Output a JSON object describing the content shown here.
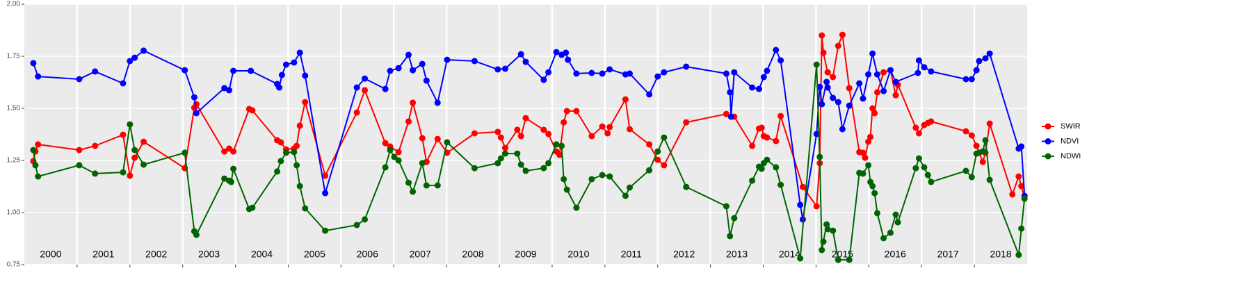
{
  "chart_data": {
    "type": "line",
    "xlim": [
      2000,
      2019
    ],
    "ylim": [
      0.75,
      2.0
    ],
    "yticks": [
      0.75,
      {
        "value": 1.0,
        "label": "1.00"
      },
      1.25,
      {
        "value": 1.5,
        "label": "1.50"
      },
      1.75,
      {
        "value": 2.0,
        "label": "2.00"
      }
    ],
    "x_breaks": [
      2001,
      2002,
      2003,
      2004,
      2005,
      2006,
      2007,
      2008,
      2009,
      2010,
      2011,
      2012,
      2013,
      2014,
      2015,
      2016,
      2017,
      2018
    ],
    "year_labels": [
      {
        "value": 2000.5,
        "label": "2000"
      },
      {
        "value": 2001.5,
        "label": "2001"
      },
      {
        "value": 2002.5,
        "label": "2002"
      },
      {
        "value": 2003.5,
        "label": "2003"
      },
      {
        "value": 2004.5,
        "label": "2004"
      },
      {
        "value": 2005.5,
        "label": "2005"
      },
      {
        "value": 2006.5,
        "label": "2006"
      },
      {
        "value": 2007.5,
        "label": "2007"
      },
      {
        "value": 2008.5,
        "label": "2008"
      },
      {
        "value": 2009.5,
        "label": "2009"
      },
      {
        "value": 2010.5,
        "label": "2010"
      },
      {
        "value": 2011.5,
        "label": "2011"
      },
      {
        "value": 2012.5,
        "label": "2012"
      },
      {
        "value": 2013.5,
        "label": "2013"
      },
      {
        "value": 2014.5,
        "label": "2014"
      },
      {
        "value": 2015.5,
        "label": "2015"
      },
      {
        "value": 2016.5,
        "label": "2016"
      },
      {
        "value": 2017.5,
        "label": "2017"
      },
      {
        "value": 2018.5,
        "label": "2018"
      }
    ],
    "grid": true,
    "legend": "right",
    "series": [
      {
        "name": "SWIR",
        "color": "#ff0000",
        "x": [
          2000.17,
          2000.21,
          2000.26,
          2001.04,
          2001.34,
          2001.87,
          2002.0,
          2002.09,
          2002.26,
          2003.04,
          2003.22,
          2003.26,
          2003.79,
          2003.88,
          2003.96,
          2004.26,
          2004.32,
          2004.79,
          2004.86,
          2004.96,
          2005.11,
          2005.16,
          2005.22,
          2005.32,
          2005.7,
          2006.3,
          2006.45,
          2006.84,
          2006.93,
          2007.09,
          2007.28,
          2007.36,
          2007.54,
          2007.62,
          2007.83,
          2008.01,
          2008.53,
          2008.97,
          2009.03,
          2009.11,
          2009.34,
          2009.41,
          2009.5,
          2009.84,
          2009.93,
          2010.08,
          2010.14,
          2010.22,
          2010.28,
          2010.46,
          2010.75,
          2010.95,
          2011.05,
          2011.09,
          2011.39,
          2011.47,
          2011.84,
          2012.0,
          2012.12,
          2012.54,
          2013.3,
          2013.39,
          2013.45,
          2013.79,
          2013.92,
          2013.97,
          2014.01,
          2014.07,
          2014.24,
          2014.33,
          2014.75,
          2015.01,
          2015.07,
          2015.11,
          2015.14,
          2015.22,
          2015.32,
          2015.42,
          2015.5,
          2015.63,
          2015.82,
          2015.89,
          2015.93,
          2015.99,
          2016.03,
          2016.07,
          2016.11,
          2016.16,
          2016.28,
          2016.41,
          2016.51,
          2016.55,
          2016.89,
          2016.95,
          2017.05,
          2017.12,
          2017.18,
          2017.84,
          2017.95,
          2018.04,
          2018.16,
          2018.21,
          2018.29,
          2018.72,
          2018.84,
          2018.89,
          2018.95
        ],
        "values": [
          1.247,
          1.293,
          1.327,
          1.3,
          1.32,
          1.373,
          1.177,
          1.263,
          1.34,
          1.213,
          1.503,
          1.52,
          1.293,
          1.307,
          1.293,
          1.497,
          1.49,
          1.347,
          1.337,
          1.303,
          1.307,
          1.32,
          1.417,
          1.53,
          1.177,
          1.48,
          1.587,
          1.333,
          1.317,
          1.29,
          1.437,
          1.527,
          1.357,
          1.243,
          1.353,
          1.287,
          1.38,
          1.387,
          1.36,
          1.31,
          1.397,
          1.367,
          1.453,
          1.397,
          1.377,
          1.293,
          1.277,
          1.433,
          1.487,
          1.487,
          1.367,
          1.413,
          1.38,
          1.41,
          1.543,
          1.4,
          1.327,
          1.253,
          1.227,
          1.433,
          1.473,
          1.46,
          1.46,
          1.32,
          1.403,
          1.407,
          1.367,
          1.36,
          1.343,
          1.463,
          1.123,
          1.03,
          1.237,
          1.85,
          1.767,
          1.673,
          1.65,
          1.8,
          1.853,
          1.597,
          1.29,
          1.287,
          1.263,
          1.34,
          1.363,
          1.5,
          1.477,
          1.577,
          1.673,
          1.683,
          1.563,
          1.613,
          1.407,
          1.38,
          1.42,
          1.43,
          1.437,
          1.39,
          1.37,
          1.32,
          1.243,
          1.287,
          1.427,
          1.087,
          1.173,
          1.127,
          1.067
        ]
      },
      {
        "name": "NDVI",
        "color": "#0000ff",
        "x": [
          2000.17,
          2000.26,
          2001.04,
          2001.34,
          2001.87,
          2002.0,
          2002.09,
          2002.26,
          2003.04,
          2003.22,
          2003.26,
          2003.79,
          2003.88,
          2003.96,
          2004.29,
          2004.79,
          2004.83,
          2004.88,
          2004.96,
          2005.11,
          2005.22,
          2005.32,
          2005.7,
          2006.3,
          2006.45,
          2006.84,
          2006.93,
          2007.09,
          2007.28,
          2007.36,
          2007.54,
          2007.62,
          2007.83,
          2008.01,
          2008.53,
          2008.97,
          2009.11,
          2009.41,
          2009.5,
          2009.84,
          2009.93,
          2010.08,
          2010.18,
          2010.26,
          2010.3,
          2010.46,
          2010.75,
          2010.95,
          2011.09,
          2011.39,
          2011.47,
          2011.84,
          2012.0,
          2012.12,
          2012.54,
          2013.3,
          2013.37,
          2013.39,
          2013.45,
          2013.79,
          2013.92,
          2014.01,
          2014.07,
          2014.24,
          2014.33,
          2014.7,
          2014.75,
          2015.01,
          2015.07,
          2015.11,
          2015.2,
          2015.22,
          2015.32,
          2015.42,
          2015.5,
          2015.63,
          2015.82,
          2015.89,
          2015.99,
          2016.07,
          2016.16,
          2016.28,
          2016.41,
          2016.51,
          2016.93,
          2016.95,
          2017.05,
          2017.18,
          2017.84,
          2017.95,
          2018.04,
          2018.09,
          2018.21,
          2018.29,
          2018.84,
          2018.89,
          2018.95
        ],
        "values": [
          1.717,
          1.653,
          1.64,
          1.677,
          1.62,
          1.727,
          1.743,
          1.777,
          1.683,
          1.553,
          1.477,
          1.597,
          1.587,
          1.68,
          1.68,
          1.617,
          1.6,
          1.66,
          1.71,
          1.72,
          1.767,
          1.657,
          1.093,
          1.6,
          1.643,
          1.593,
          1.68,
          1.693,
          1.757,
          1.683,
          1.713,
          1.633,
          1.527,
          1.733,
          1.727,
          1.687,
          1.69,
          1.76,
          1.723,
          1.637,
          1.673,
          1.77,
          1.757,
          1.767,
          1.733,
          1.667,
          1.67,
          1.667,
          1.687,
          1.663,
          1.667,
          1.567,
          1.653,
          1.673,
          1.7,
          1.667,
          1.577,
          1.46,
          1.673,
          1.6,
          1.593,
          1.65,
          1.68,
          1.78,
          1.73,
          1.037,
          0.967,
          1.377,
          1.603,
          1.52,
          1.627,
          1.6,
          1.55,
          1.53,
          1.4,
          1.513,
          1.62,
          1.547,
          1.663,
          1.763,
          1.663,
          1.583,
          1.683,
          1.627,
          1.67,
          1.73,
          1.697,
          1.677,
          1.64,
          1.64,
          1.683,
          1.727,
          1.74,
          1.763,
          1.307,
          1.317,
          1.08
        ]
      },
      {
        "name": "NDWI",
        "color": "#006400",
        "x": [
          2000.17,
          2000.21,
          2000.26,
          2001.04,
          2001.34,
          2001.87,
          2002.0,
          2002.09,
          2002.26,
          2003.04,
          2003.22,
          2003.26,
          2003.79,
          2003.88,
          2003.92,
          2003.96,
          2004.26,
          2004.32,
          2004.79,
          2004.86,
          2004.96,
          2005.11,
          2005.16,
          2005.22,
          2005.32,
          2005.7,
          2006.3,
          2006.45,
          2006.84,
          2006.93,
          2007.01,
          2007.09,
          2007.28,
          2007.36,
          2007.54,
          2007.62,
          2007.83,
          2008.01,
          2008.53,
          2008.97,
          2009.03,
          2009.11,
          2009.34,
          2009.41,
          2009.5,
          2009.84,
          2009.93,
          2010.08,
          2010.18,
          2010.22,
          2010.28,
          2010.46,
          2010.75,
          2010.95,
          2011.09,
          2011.39,
          2011.47,
          2011.84,
          2012.0,
          2012.12,
          2012.54,
          2013.3,
          2013.37,
          2013.45,
          2013.79,
          2013.92,
          2013.97,
          2014.01,
          2014.07,
          2014.24,
          2014.33,
          2014.7,
          2015.01,
          2015.07,
          2015.11,
          2015.14,
          2015.2,
          2015.22,
          2015.32,
          2015.42,
          2015.63,
          2015.82,
          2015.89,
          2015.99,
          2016.03,
          2016.07,
          2016.11,
          2016.16,
          2016.28,
          2016.41,
          2016.51,
          2016.55,
          2016.89,
          2016.95,
          2017.05,
          2017.12,
          2017.18,
          2017.84,
          2017.95,
          2018.04,
          2018.09,
          2018.16,
          2018.21,
          2018.29,
          2018.84,
          2018.89,
          2018.95
        ],
        "values": [
          1.3,
          1.227,
          1.173,
          1.227,
          1.187,
          1.193,
          1.423,
          1.3,
          1.23,
          1.287,
          0.91,
          0.893,
          1.163,
          1.153,
          1.147,
          1.21,
          1.017,
          1.023,
          1.197,
          1.247,
          1.287,
          1.29,
          1.227,
          1.127,
          1.02,
          0.913,
          0.94,
          0.967,
          1.217,
          1.3,
          1.267,
          1.25,
          1.143,
          1.1,
          1.237,
          1.13,
          1.13,
          1.337,
          1.213,
          1.237,
          1.26,
          1.283,
          1.283,
          1.23,
          1.2,
          1.213,
          1.237,
          1.327,
          1.32,
          1.16,
          1.11,
          1.023,
          1.16,
          1.18,
          1.173,
          1.08,
          1.12,
          1.203,
          1.293,
          1.36,
          1.123,
          1.03,
          0.887,
          0.973,
          1.153,
          1.22,
          1.21,
          1.237,
          1.253,
          1.217,
          1.133,
          0.78,
          1.71,
          1.267,
          0.82,
          0.86,
          0.943,
          0.92,
          0.913,
          0.773,
          0.773,
          1.19,
          1.187,
          1.227,
          1.147,
          1.127,
          1.093,
          0.997,
          0.877,
          0.903,
          0.99,
          0.953,
          1.213,
          1.26,
          1.217,
          1.18,
          1.147,
          1.2,
          1.17,
          1.283,
          1.287,
          1.293,
          1.347,
          1.157,
          0.797,
          0.923,
          1.067
        ]
      }
    ]
  }
}
